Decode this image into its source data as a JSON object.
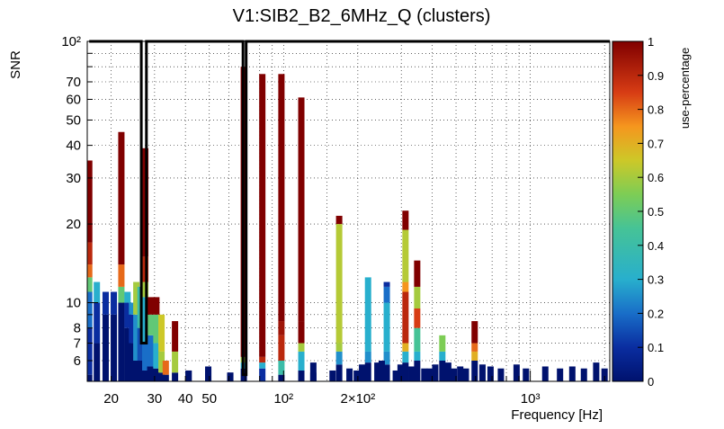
{
  "chart_data": {
    "type": "heatmap",
    "title": "V1:SIB2_B2_6MHz_Q (clusters)",
    "xlabel": "Frequency [Hz]",
    "ylabel": "SNR",
    "zlabel": "use-percentage",
    "x_scale": "log",
    "y_scale": "log",
    "xlim": [
      16,
      2100
    ],
    "ylim": [
      5,
      100
    ],
    "zlim": [
      0,
      1
    ],
    "x_ticks": [
      {
        "value": 20,
        "label": "20"
      },
      {
        "value": 30,
        "label": "30"
      },
      {
        "value": 40,
        "label": "40"
      },
      {
        "value": 50,
        "label": "50"
      },
      {
        "value": 100,
        "label": "10²"
      },
      {
        "value": 200,
        "label": "2×10²"
      },
      {
        "value": 1000,
        "label": "10³"
      }
    ],
    "y_ticks": [
      {
        "value": 6,
        "label": "6"
      },
      {
        "value": 7,
        "label": "7"
      },
      {
        "value": 8,
        "label": "8"
      },
      {
        "value": 10,
        "label": "10"
      },
      {
        "value": 20,
        "label": "20"
      },
      {
        "value": 30,
        "label": "30"
      },
      {
        "value": 40,
        "label": "40"
      },
      {
        "value": 50,
        "label": "50"
      },
      {
        "value": 60,
        "label": "60"
      },
      {
        "value": 70,
        "label": "70"
      },
      {
        "value": 100,
        "label": "10²"
      }
    ],
    "z_ticks": [
      {
        "value": 0,
        "label": "0"
      },
      {
        "value": 0.1,
        "label": "0.1"
      },
      {
        "value": 0.2,
        "label": "0.2"
      },
      {
        "value": 0.3,
        "label": "0.3"
      },
      {
        "value": 0.4,
        "label": "0.4"
      },
      {
        "value": 0.5,
        "label": "0.5"
      },
      {
        "value": 0.6,
        "label": "0.6"
      },
      {
        "value": 0.7,
        "label": "0.7"
      },
      {
        "value": 0.8,
        "label": "0.8"
      },
      {
        "value": 0.9,
        "label": "0.9"
      },
      {
        "value": 1,
        "label": "1"
      }
    ],
    "grid": true,
    "columns": [
      {
        "freq": 16.3,
        "stops": [
          [
            5.3,
            0.0
          ],
          [
            8,
            0.1
          ],
          [
            11,
            0.2
          ],
          [
            12.5,
            0.5
          ],
          [
            14,
            0.8
          ],
          [
            17,
            0.9
          ],
          [
            35,
            1.0
          ]
        ]
      },
      {
        "freq": 17.5,
        "stops": [
          [
            7,
            0.0
          ],
          [
            10,
            0.1
          ],
          [
            12,
            0.3
          ]
        ]
      },
      {
        "freq": 19.0,
        "stops": [
          [
            9,
            0.0
          ],
          [
            11,
            0.1
          ]
        ]
      },
      {
        "freq": 20.5,
        "stops": [
          [
            9,
            0.0
          ],
          [
            11,
            0.1
          ]
        ]
      },
      {
        "freq": 22.0,
        "stops": [
          [
            10,
            0.0
          ],
          [
            11.5,
            0.5
          ],
          [
            14,
            0.8
          ],
          [
            45,
            1.0
          ]
        ]
      },
      {
        "freq": 23.3,
        "stops": [
          [
            8,
            0.0
          ],
          [
            10,
            0.1
          ],
          [
            11,
            0.3
          ]
        ]
      },
      {
        "freq": 24.3,
        "stops": [
          [
            7,
            0.0
          ],
          [
            9,
            0.1
          ],
          [
            10,
            0.25
          ]
        ]
      },
      {
        "freq": 25.3,
        "stops": [
          [
            6,
            0.0
          ],
          [
            9,
            0.25
          ],
          [
            12,
            0.6
          ]
        ]
      },
      {
        "freq": 26.3,
        "stops": [
          [
            6,
            0.0
          ],
          [
            8,
            0.15
          ],
          [
            11.5,
            0.4
          ]
        ]
      },
      {
        "freq": 27.5,
        "stops": [
          [
            5.5,
            0.0
          ],
          [
            7,
            0.2
          ],
          [
            10.5,
            0.3
          ],
          [
            12,
            0.6
          ],
          [
            15,
            0.9
          ],
          [
            39,
            1.0
          ]
        ]
      },
      {
        "freq": 28.8,
        "stops": [
          [
            5.7,
            0.0
          ],
          [
            7.5,
            0.2
          ],
          [
            9,
            0.5
          ],
          [
            10.5,
            1.0
          ]
        ]
      },
      {
        "freq": 30.5,
        "stops": [
          [
            5.6,
            0.0
          ],
          [
            7,
            0.3
          ],
          [
            9,
            0.5
          ],
          [
            10.5,
            1.0
          ]
        ]
      },
      {
        "freq": 32.0,
        "stops": [
          [
            5.4,
            0.0
          ],
          [
            6.5,
            0.6
          ],
          [
            9,
            0.65
          ]
        ]
      },
      {
        "freq": 33.3,
        "stops": [
          [
            5.3,
            0.0
          ],
          [
            6.0,
            0.8
          ]
        ]
      },
      {
        "freq": 36.3,
        "stops": [
          [
            5.4,
            0.0
          ],
          [
            6.5,
            0.6
          ],
          [
            8.5,
            1.0
          ]
        ]
      },
      {
        "freq": 41.2,
        "stops": [
          [
            5.5,
            0.0
          ]
        ]
      },
      {
        "freq": 49.5,
        "stops": [
          [
            5.4,
            0.0
          ],
          [
            5.6,
            0.15
          ]
        ]
      },
      {
        "freq": 60.8,
        "stops": [
          [
            5.4,
            0.0
          ]
        ]
      },
      {
        "freq": 69.0,
        "stops": [
          [
            5.6,
            0.0
          ],
          [
            5.9,
            0.3
          ],
          [
            6.2,
            0.6
          ],
          [
            80,
            1.0
          ]
        ]
      },
      {
        "freq": 82.0,
        "stops": [
          [
            5.6,
            0.1
          ],
          [
            5.9,
            0.3
          ],
          [
            6.2,
            0.9
          ],
          [
            75,
            1.0
          ]
        ]
      },
      {
        "freq": 98.0,
        "stops": [
          [
            5.3,
            0.0
          ],
          [
            6,
            0.4
          ],
          [
            7.5,
            0.9
          ],
          [
            8.5,
            0.95
          ],
          [
            75,
            1.0
          ]
        ]
      },
      {
        "freq": 118.0,
        "stops": [
          [
            5.5,
            0.0
          ],
          [
            6.5,
            0.3
          ],
          [
            7,
            0.6
          ],
          [
            8.5,
            1.0
          ],
          [
            61,
            1.0
          ]
        ]
      },
      {
        "freq": 132.0,
        "stops": [
          [
            5.4,
            0.0
          ]
        ]
      },
      {
        "freq": 168.0,
        "stops": [
          [
            5.8,
            0.0
          ],
          [
            6.5,
            0.25
          ],
          [
            7.0,
            0.6
          ],
          [
            20,
            0.62
          ],
          [
            21.5,
            1.0
          ]
        ]
      },
      {
        "freq": 220.0,
        "stops": [
          [
            5.9,
            0.0
          ],
          [
            6.5,
            0.25
          ],
          [
            12.5,
            0.3
          ]
        ]
      },
      {
        "freq": 262.0,
        "stops": [
          [
            5.8,
            0.0
          ],
          [
            6.5,
            0.25
          ],
          [
            10,
            0.3
          ],
          [
            11.5,
            0.2
          ],
          [
            12,
            0.1
          ]
        ]
      },
      {
        "freq": 312.0,
        "stops": [
          [
            5.9,
            0.0
          ],
          [
            6.5,
            0.3
          ],
          [
            7.0,
            0.7
          ],
          [
            11,
            0.9
          ],
          [
            12,
            0.75
          ],
          [
            19,
            0.62
          ],
          [
            22.5,
            1.0
          ]
        ]
      },
      {
        "freq": 348.0,
        "stops": [
          [
            6.0,
            0.0
          ],
          [
            6.5,
            0.3
          ],
          [
            8.0,
            0.45
          ],
          [
            9.5,
            0.85
          ],
          [
            11.5,
            0.6
          ],
          [
            14.5,
            1.0
          ]
        ]
      },
      {
        "freq": 440.0,
        "stops": [
          [
            6.0,
            0.0
          ],
          [
            6.5,
            0.3
          ],
          [
            7.5,
            0.55
          ]
        ]
      },
      {
        "freq": 595.0,
        "stops": [
          [
            6.0,
            0.0
          ],
          [
            6.5,
            0.7
          ],
          [
            7.0,
            0.8
          ],
          [
            8.5,
            1.0
          ]
        ]
      }
    ],
    "low_bins": [
      {
        "freq": 41.2,
        "snr": 5.5
      },
      {
        "freq": 49.5,
        "snr": 5.7
      },
      {
        "freq": 60.8,
        "snr": 5.4
      },
      {
        "freq": 132,
        "snr": 5.9
      },
      {
        "freq": 158,
        "snr": 5.5
      },
      {
        "freq": 185,
        "snr": 5.6
      },
      {
        "freq": 198,
        "snr": 5.5
      },
      {
        "freq": 208,
        "snr": 5.8
      },
      {
        "freq": 240,
        "snr": 5.9
      },
      {
        "freq": 250,
        "snr": 6.0
      },
      {
        "freq": 285,
        "snr": 5.5
      },
      {
        "freq": 298,
        "snr": 5.8
      },
      {
        "freq": 330,
        "snr": 5.7
      },
      {
        "freq": 372,
        "snr": 5.6
      },
      {
        "freq": 392,
        "snr": 5.6
      },
      {
        "freq": 412,
        "snr": 5.8
      },
      {
        "freq": 465,
        "snr": 5.9
      },
      {
        "freq": 490,
        "snr": 5.6
      },
      {
        "freq": 520,
        "snr": 5.7
      },
      {
        "freq": 548,
        "snr": 5.6
      },
      {
        "freq": 640,
        "snr": 5.8
      },
      {
        "freq": 690,
        "snr": 5.7
      },
      {
        "freq": 760,
        "snr": 5.6
      },
      {
        "freq": 880,
        "snr": 5.8
      },
      {
        "freq": 960,
        "snr": 5.6
      },
      {
        "freq": 1150,
        "snr": 5.7
      },
      {
        "freq": 1320,
        "snr": 5.6
      },
      {
        "freq": 1480,
        "snr": 5.7
      },
      {
        "freq": 1650,
        "snr": 5.6
      },
      {
        "freq": 1850,
        "snr": 5.9
      },
      {
        "freq": 2000,
        "snr": 5.6
      }
    ],
    "contour_outline": [
      [
        16.3,
        100
      ],
      [
        26.5,
        100
      ],
      [
        26.5,
        7
      ],
      [
        27.8,
        7
      ],
      [
        27.8,
        100
      ],
      [
        68.5,
        100
      ],
      [
        68.5,
        5.3
      ],
      [
        70.5,
        5.3
      ],
      [
        70.5,
        100
      ],
      [
        2100,
        100
      ]
    ]
  }
}
